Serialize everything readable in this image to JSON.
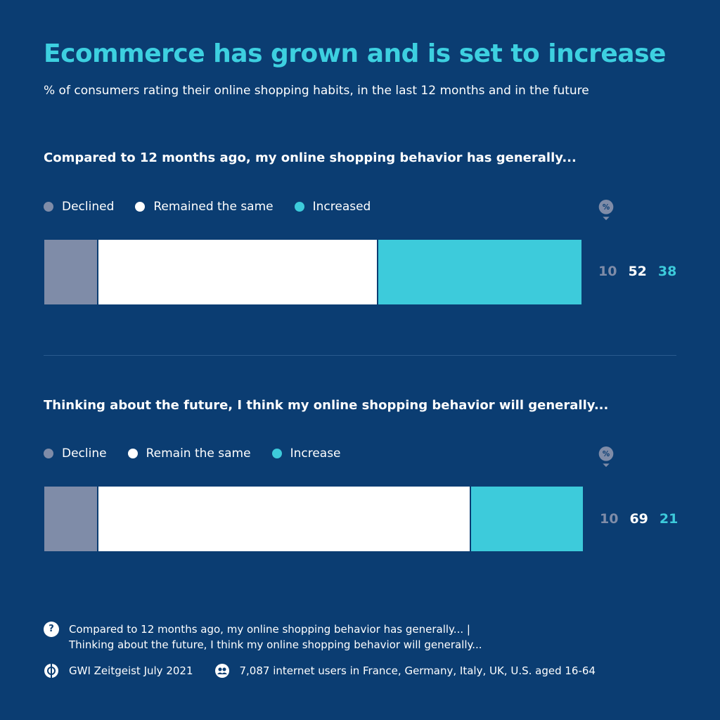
{
  "title": "Ecommerce has grown and is set to increase",
  "subtitle": "% of consumers rating their online shopping habits, in the last 12 months and in the future",
  "percent_symbol": "%",
  "colors": {
    "background": "#0b3d72",
    "declined": "#7f8ca8",
    "same": "#ffffff",
    "increased": "#3dcbdb",
    "title": "#3dd0e0"
  },
  "chart_data": [
    {
      "type": "bar",
      "stacked": true,
      "orientation": "horizontal",
      "title": "Compared to 12 months ago, my online shopping behavior has generally...",
      "unit": "%",
      "series": [
        {
          "name": "Declined",
          "values": [
            10
          ]
        },
        {
          "name": "Remained the same",
          "values": [
            52
          ]
        },
        {
          "name": "Increased",
          "values": [
            38
          ]
        }
      ],
      "value_labels": [
        "10",
        "52",
        "38"
      ]
    },
    {
      "type": "bar",
      "stacked": true,
      "orientation": "horizontal",
      "title": "Thinking about the future, I think my online shopping behavior will generally...",
      "unit": "%",
      "series": [
        {
          "name": "Decline",
          "values": [
            10
          ]
        },
        {
          "name": "Remain the same",
          "values": [
            69
          ]
        },
        {
          "name": "Increase",
          "values": [
            21
          ]
        }
      ],
      "value_labels": [
        "10",
        "69",
        "21"
      ]
    }
  ],
  "footer": {
    "question_icon": "question-icon",
    "question_line1": "Compared to 12 months ago, my online shopping behavior has generally... |",
    "question_line2": "Thinking about the future, I think my online shopping behavior will generally...",
    "source_icon": "gwi-logo-icon",
    "source": "GWI Zeitgeist July 2021",
    "sample_icon": "people-icon",
    "sample": "7,087 internet users in France, Germany, Italy, UK, U.S. aged 16-64"
  }
}
